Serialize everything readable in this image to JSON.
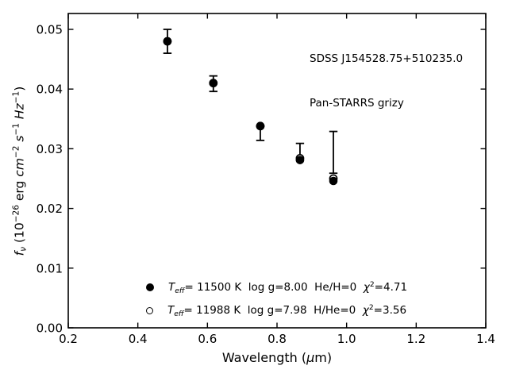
{
  "chart_data": {
    "type": "scatter",
    "title": "",
    "xlabel": "Wavelength (μm)",
    "ylabel": "f_ν (10^−26 erg cm^−2 s^−1 Hz^−1)",
    "xlabel_tokens": [
      {
        "t": "Wavelength ("
      },
      {
        "t": "μ",
        "s": "it"
      },
      {
        "t": "m)"
      }
    ],
    "ylabel_tokens": [
      {
        "t": "f",
        "s": "it"
      },
      {
        "t": "ν",
        "s": "subit"
      },
      {
        "t": " (10"
      },
      {
        "t": "−26",
        "s": "sup"
      },
      {
        "t": " erg "
      },
      {
        "t": "cm",
        "s": "it"
      },
      {
        "t": "−2",
        "s": "sup"
      },
      {
        "t": " "
      },
      {
        "t": "s",
        "s": "it"
      },
      {
        "t": "−1",
        "s": "sup"
      },
      {
        "t": " "
      },
      {
        "t": "Hz",
        "s": "it"
      },
      {
        "t": "−1",
        "s": "sup"
      },
      {
        "t": ")"
      }
    ],
    "annotation": {
      "line1": "SDSS J154528.75+510235.0",
      "line2": "Pan-STARRS grizy"
    },
    "xlim": [
      0.2,
      1.4
    ],
    "ylim": [
      0.0,
      0.05266
    ],
    "xticks": {
      "values": [
        0.2,
        0.4,
        0.6,
        0.8,
        1.0,
        1.2,
        1.4
      ],
      "labels": [
        "0.2",
        "0.4",
        "0.6",
        "0.8",
        "1.0",
        "1.2",
        "1.4"
      ]
    },
    "yticks": {
      "values": [
        0.0,
        0.01,
        0.02,
        0.03,
        0.04,
        0.05
      ],
      "labels": [
        "0.00",
        "0.01",
        "0.02",
        "0.03",
        "0.04",
        "0.05"
      ]
    },
    "grid": false,
    "bands": [
      "g",
      "r",
      "i",
      "z",
      "y"
    ],
    "wavelength_um": [
      0.485,
      0.617,
      0.752,
      0.866,
      0.962
    ],
    "observed": {
      "flux_center": [
        0.048,
        0.0409,
        0.0326,
        0.0295,
        0.0294
      ],
      "flux_err": [
        0.002,
        0.0013,
        0.0012,
        0.0014,
        0.0035
      ]
    },
    "model_filled": {
      "flux": [
        0.048,
        0.041,
        0.0338,
        0.0281,
        0.0246
      ],
      "teff_k": 11500,
      "log_g": 8.0,
      "composition": "He/H=0",
      "chi2": 4.71
    },
    "model_open": {
      "flux": [
        0.048,
        0.041,
        0.0338,
        0.0284,
        0.025
      ],
      "teff_k": 11988,
      "log_g": 7.98,
      "composition": "H/He=0",
      "chi2": 3.56
    },
    "legend": {
      "position": "lower center inside axes",
      "entries": [
        {
          "marker": "filled",
          "tokens": [
            {
              "t": "T",
              "s": "it"
            },
            {
              "t": "eff",
              "s": "subit"
            },
            {
              "t": "= 11500 K  log g=8.00  He/H=0  "
            },
            {
              "t": "χ",
              "s": "it"
            },
            {
              "t": "2",
              "s": "sup"
            },
            {
              "t": "=4.71"
            }
          ]
        },
        {
          "marker": "open",
          "tokens": [
            {
              "t": "T",
              "s": "it"
            },
            {
              "t": "eff",
              "s": "subit"
            },
            {
              "t": "= 11988 K  log g=7.98  H/He=0  "
            },
            {
              "t": "χ",
              "s": "it"
            },
            {
              "t": "2",
              "s": "sup"
            },
            {
              "t": "=3.56"
            }
          ]
        }
      ]
    }
  }
}
